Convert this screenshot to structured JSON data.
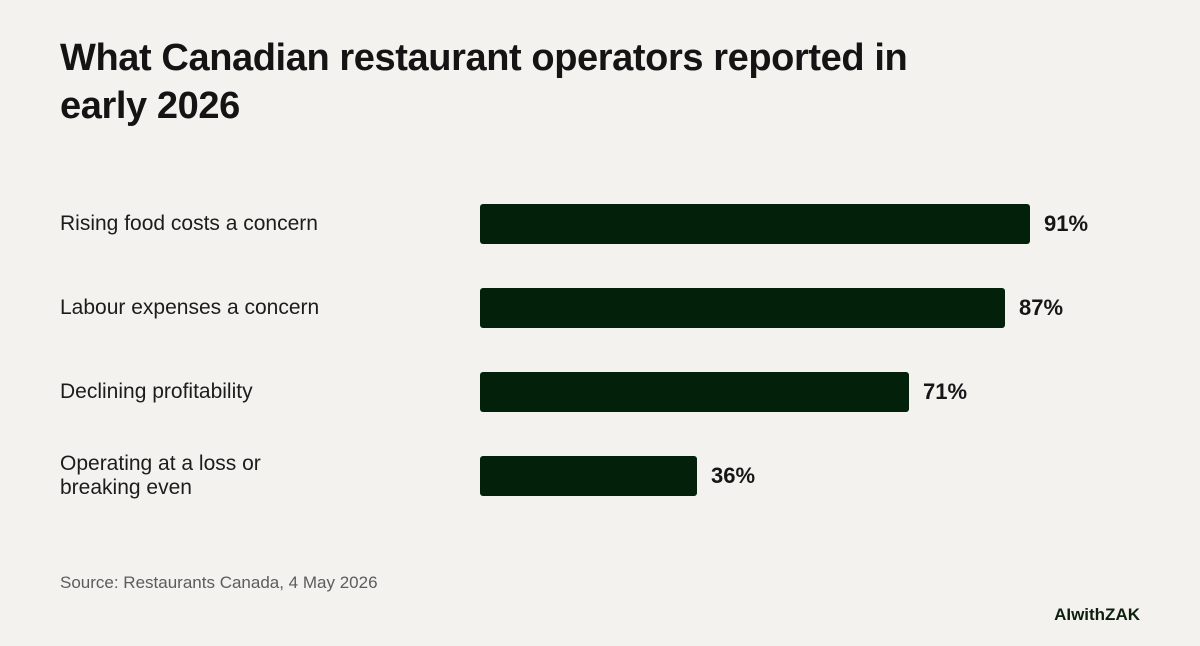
{
  "title": "What Canadian restaurant operators reported in early 2026",
  "source": "Source: Restaurants Canada, 4 May 2026",
  "brand": "AIwithZAK",
  "colors": {
    "background": "#f4f2ee",
    "bar": "#03200b",
    "text": "#161616",
    "muted": "#5c5c5c"
  },
  "chart_data": {
    "type": "bar",
    "orientation": "horizontal",
    "categories": [
      "Rising food costs a concern",
      "Labour expenses a concern",
      "Declining profitability",
      "Operating at a loss or\nbreaking even"
    ],
    "values": [
      91,
      87,
      71,
      36
    ],
    "value_labels": [
      "91%",
      "87%",
      "71%",
      "36%"
    ],
    "unit": "%",
    "xlim": [
      0,
      100
    ],
    "grid": false,
    "legend": "none"
  }
}
